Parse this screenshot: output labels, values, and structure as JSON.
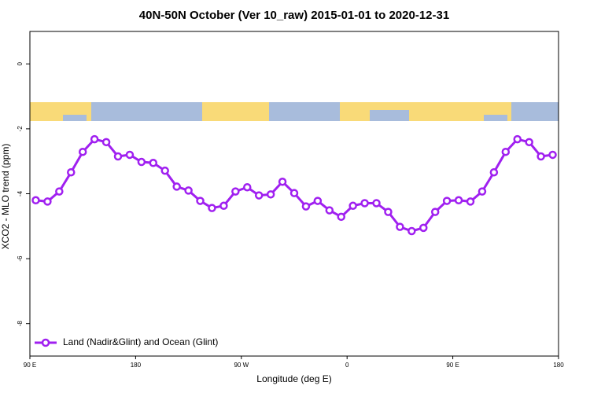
{
  "chart_data": {
    "type": "line",
    "title": "40N-50N October (Ver 10_raw)   2015-01-01 to 2020-12-31",
    "x_label": "Longitude (deg E)",
    "y_label": "XCO2 - MLO trend (ppm)",
    "x": [
      95,
      105,
      115,
      125,
      135,
      145,
      155,
      165,
      175,
      185,
      195,
      205,
      215,
      225,
      235,
      245,
      255,
      265,
      275,
      285,
      295,
      305,
      315,
      325,
      335,
      345,
      355,
      365,
      375,
      385,
      395,
      405,
      415,
      425,
      435,
      445,
      455,
      465,
      475,
      485,
      495,
      505,
      515,
      525,
      535
    ],
    "series": [
      {
        "name": "Land (Nadir&Glint) and Ocean (Glint)",
        "color": "#a020f0",
        "values": [
          -4.2,
          -4.24,
          -3.93,
          -3.34,
          -2.71,
          -2.32,
          -2.41,
          -2.85,
          -2.8,
          -3.02,
          -3.05,
          -3.29,
          -3.78,
          -3.9,
          -4.22,
          -4.44,
          -4.37,
          -3.93,
          -3.8,
          -4.05,
          -4.02,
          -3.63,
          -3.98,
          -4.39,
          -4.22,
          -4.51,
          -4.71,
          -4.37,
          -4.29,
          -4.29,
          -4.56,
          -5.02,
          -5.15,
          -5.05,
          -4.56,
          -4.22,
          -4.2,
          -4.24,
          -3.93,
          -3.34,
          -2.71,
          -2.32,
          -2.41,
          -2.85,
          -2.8
        ]
      }
    ],
    "xlim": [
      90,
      540
    ],
    "xticks": [
      {
        "value": 90,
        "label": "90 E"
      },
      180,
      {
        "value": 270,
        "label": "90 W"
      },
      {
        "value": 360,
        "label": "0"
      },
      {
        "value": 450,
        "label": "90 E"
      },
      {
        "value": 540,
        "label": "180"
      }
    ],
    "ylim": [
      -9,
      1
    ],
    "yticks": [
      0,
      -2,
      -4,
      -6,
      -8
    ],
    "legend": "bottomleft"
  }
}
